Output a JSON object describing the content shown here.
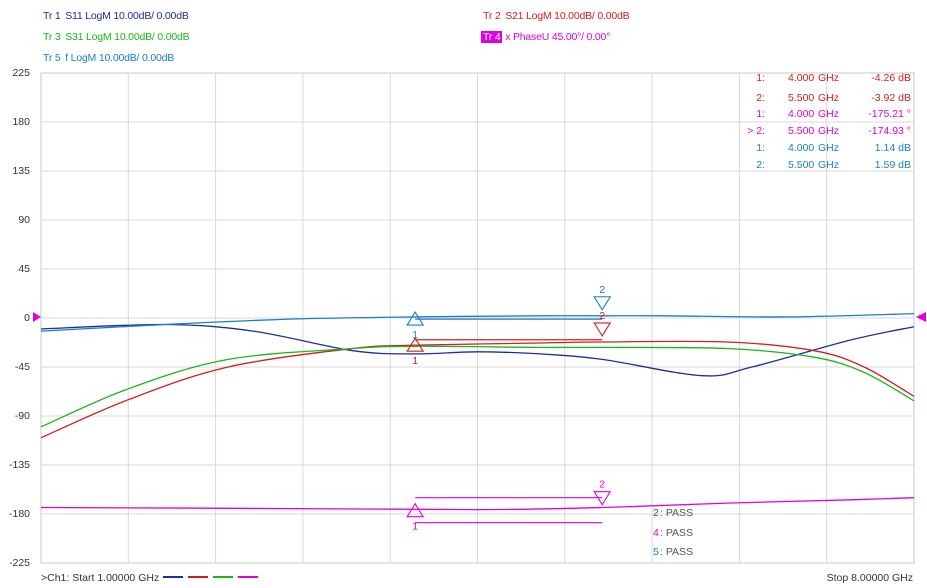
{
  "traces": [
    {
      "tag": "Tr 1",
      "text": "S11 LogM 10.00dB/ 0.00dB",
      "color": "#1c2f9c"
    },
    {
      "tag": "Tr 2",
      "text": "S21 LogM 10.00dB/ 0.00dB",
      "color": "#d0201e"
    },
    {
      "tag": "Tr 3",
      "text": "S31 LogM 10.00dB/ 0.00dB",
      "color": "#18b818"
    },
    {
      "tag": "Tr 4",
      "text": "x PhaseU 45.00°/ 0.00°",
      "color": "#e000e0",
      "active": true
    },
    {
      "tag": "Tr 5",
      "text": "f LogM 10.00dB/ 0.00dB",
      "color": "#1a7fc8"
    }
  ],
  "y_ticks": [
    "225",
    "180",
    "135",
    "90",
    "45",
    "0",
    "-45",
    "-90",
    "-135",
    "-180",
    "-225"
  ],
  "marker_table": [
    {
      "idx": "1:",
      "freq": "4.000",
      "unit": "GHz",
      "value": "-4.26 dB",
      "color": "#d0201e"
    },
    {
      "idx": "2:",
      "freq": "5.500",
      "unit": "GHz",
      "value": "-3.92 dB",
      "color": "#d0201e"
    },
    {
      "idx": "1:",
      "freq": "4.000",
      "unit": "GHz",
      "value": "-175.21 °",
      "color": "#e000e0"
    },
    {
      "idx": "> 2:",
      "freq": "5.500",
      "unit": "GHz",
      "value": "-174.93 °",
      "color": "#e000e0"
    },
    {
      "idx": "1:",
      "freq": "4.000",
      "unit": "GHz",
      "value": "1.14 dB",
      "color": "#1a7fc8"
    },
    {
      "idx": "2:",
      "freq": "5.500",
      "unit": "GHz",
      "value": "1.59 dB",
      "color": "#1a7fc8"
    }
  ],
  "pass_list": [
    {
      "num": "2",
      "text": ": PASS",
      "color": "#d0201e"
    },
    {
      "num": "4",
      "text": ": PASS",
      "color": "#e000e0"
    },
    {
      "num": "5",
      "text": ": PASS",
      "color": "#1a7fc8"
    }
  ],
  "markers": [
    {
      "label": "1",
      "trace": "Tr 2",
      "color": "#d0201e",
      "x": 4.0,
      "y": -25,
      "dir": "up"
    },
    {
      "label": "2",
      "trace": "Tr 2",
      "color": "#d0201e",
      "x": 5.5,
      "y": -10,
      "dir": "down"
    },
    {
      "label": "1",
      "trace": "Tr 5",
      "color": "#1a7fc8",
      "x": 4.0,
      "y": -1,
      "dir": "up"
    },
    {
      "label": "2",
      "trace": "Tr 5",
      "color": "#1a7fc8",
      "x": 5.5,
      "y": 14,
      "dir": "down"
    },
    {
      "label": "1",
      "trace": "Tr 4",
      "color": "#e000e0",
      "x": 4.0,
      "y": -177,
      "dir": "up"
    },
    {
      "label": "2",
      "trace": "Tr 4",
      "color": "#e000e0",
      "x": 5.5,
      "y": -165,
      "dir": "down"
    }
  ],
  "footer": {
    "left": ">Ch1: Start 1.00000 GHz",
    "right": "Stop 8.00000 GHz",
    "legend_colors": [
      "#1c2f9c",
      "#d0201e",
      "#18b818",
      "#e000e0"
    ]
  },
  "colors": {
    "grid": "#d8d8d8",
    "ref_arrow": "#e000e0"
  },
  "chart_data": {
    "type": "line",
    "x_start_ghz": 1.0,
    "x_stop_ghz": 8.0,
    "ylim": [
      -225,
      225
    ],
    "y_div": 45,
    "grid": true,
    "series": [
      {
        "name": "Tr 1",
        "color": "#1c2f9c",
        "x": [
          1,
          2,
          2.7,
          3.5,
          4,
          4.5,
          5,
          5.5,
          6.3,
          6.7,
          7.5,
          8
        ],
        "y": [
          -10,
          -6,
          -12,
          -30,
          -33,
          -31,
          -33,
          -38,
          -53,
          -45,
          -20,
          -8
        ]
      },
      {
        "name": "Tr 2",
        "color": "#d0201e",
        "x": [
          1,
          1.7,
          2.5,
          3.5,
          4,
          5,
          5.5,
          6.5,
          7.2,
          7.6,
          8
        ],
        "y": [
          -110,
          -75,
          -45,
          -28,
          -25,
          -23,
          -22,
          -22,
          -30,
          -45,
          -72
        ]
      },
      {
        "name": "Tr 3",
        "color": "#18b818",
        "x": [
          1,
          1.7,
          2.5,
          3.5,
          4,
          5,
          5.5,
          6.5,
          7.2,
          7.6,
          8
        ],
        "y": [
          -100,
          -65,
          -38,
          -28,
          -26,
          -27,
          -27,
          -28,
          -36,
          -50,
          -76
        ]
      },
      {
        "name": "Tr 4",
        "color": "#e000e0",
        "x": [
          1,
          3,
          4.5,
          5.5,
          6.5,
          7.5,
          8
        ],
        "y": [
          -174,
          -175,
          -176,
          -174,
          -170,
          -167,
          -165
        ]
      },
      {
        "name": "Tr 5",
        "color": "#1a7fc8",
        "x": [
          1,
          2,
          3,
          4,
          5,
          5.5,
          6,
          7,
          8
        ],
        "y": [
          -12,
          -6,
          -1,
          1,
          2,
          2,
          2,
          1,
          4
        ]
      }
    ],
    "limit_lines": [
      {
        "trace": "Tr 2",
        "color": "#d0201e",
        "x": [
          4.0,
          5.5
        ],
        "y": -20
      },
      {
        "trace": "Tr 5",
        "color": "#1a7fc8",
        "x": [
          4.0,
          5.5
        ],
        "y": -1
      },
      {
        "trace": "Tr 4",
        "color": "#e000e0",
        "x": [
          4.0,
          5.5
        ],
        "y": -165
      },
      {
        "trace": "Tr 4",
        "color": "#e000e0",
        "x": [
          4.0,
          5.5
        ],
        "y": -188
      }
    ]
  }
}
